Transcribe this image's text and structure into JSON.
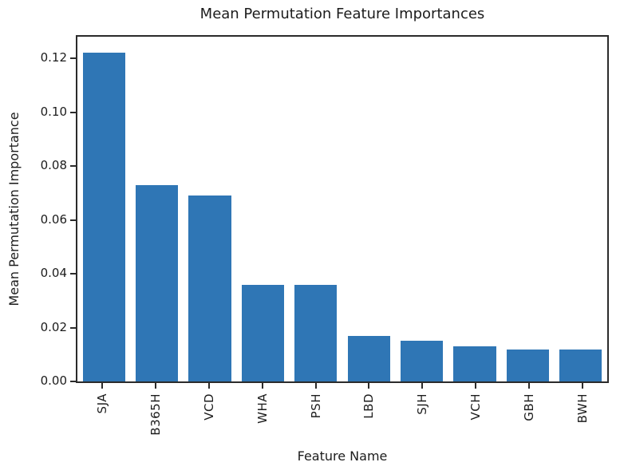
{
  "figure": {
    "background": "#ffffff"
  },
  "chart_data": {
    "type": "bar",
    "title": "Mean Permutation Feature Importances",
    "xlabel": "Feature Name",
    "ylabel": "Mean Permutation Importance",
    "categories": [
      "SJA",
      "B365H",
      "VCD",
      "WHA",
      "PSH",
      "LBD",
      "SJH",
      "VCH",
      "GBH",
      "BWH"
    ],
    "values": [
      0.122,
      0.073,
      0.069,
      0.036,
      0.036,
      0.017,
      0.015,
      0.013,
      0.012,
      0.012
    ],
    "ylim": [
      0,
      0.128
    ],
    "yticks": [
      0.0,
      0.02,
      0.04,
      0.06,
      0.08,
      0.1,
      0.12
    ],
    "ytick_decimals": 2,
    "xtick_rotation_degrees": 90,
    "bar_color": "#2f76b5",
    "spine_color": "#2b2b2b",
    "text_color": "#1c1c1c",
    "grid": false,
    "legend_position": "none"
  }
}
